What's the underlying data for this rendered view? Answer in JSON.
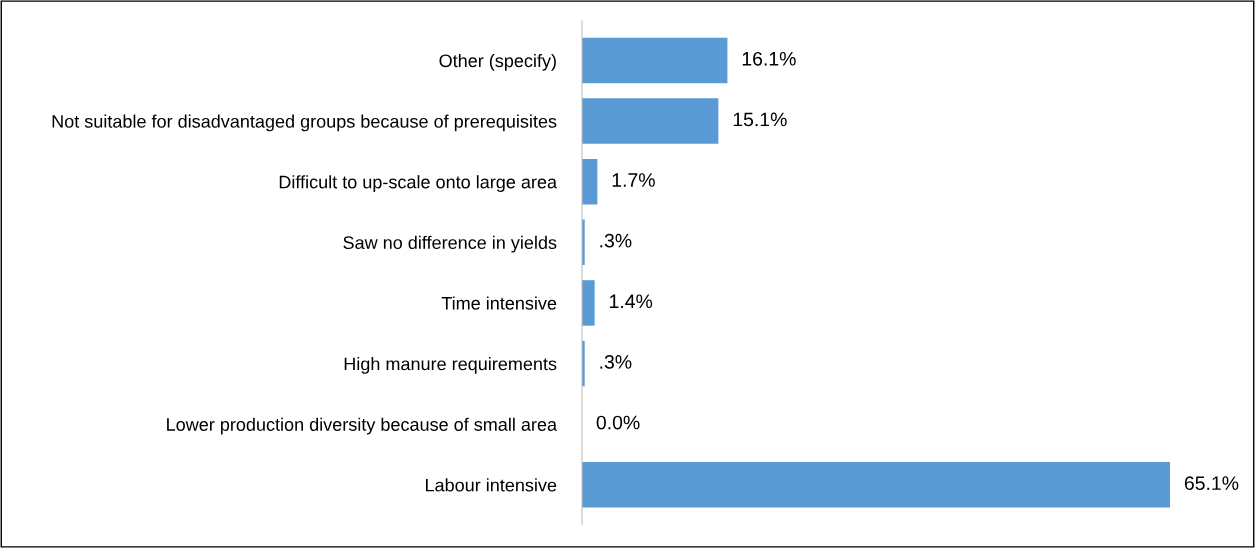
{
  "chart_data": {
    "type": "bar",
    "orientation": "horizontal",
    "categories": [
      "Other (specify)",
      "Not suitable for disadvantaged groups because of prerequisites",
      "Difficult to up-scale onto large area",
      "Saw no difference in yields",
      "Time intensive",
      "High manure requirements",
      "Lower production diversity because of small area",
      "Labour intensive"
    ],
    "values": [
      16.1,
      15.1,
      1.7,
      0.3,
      1.4,
      0.3,
      0.0,
      65.1
    ],
    "value_labels": [
      "16.1%",
      "15.1%",
      "1.7%",
      ".3%",
      "1.4%",
      ".3%",
      "0.0%",
      "65.1%"
    ],
    "color": "#5b9bd5",
    "tick_labels": "y",
    "grid": false,
    "legend": false
  }
}
